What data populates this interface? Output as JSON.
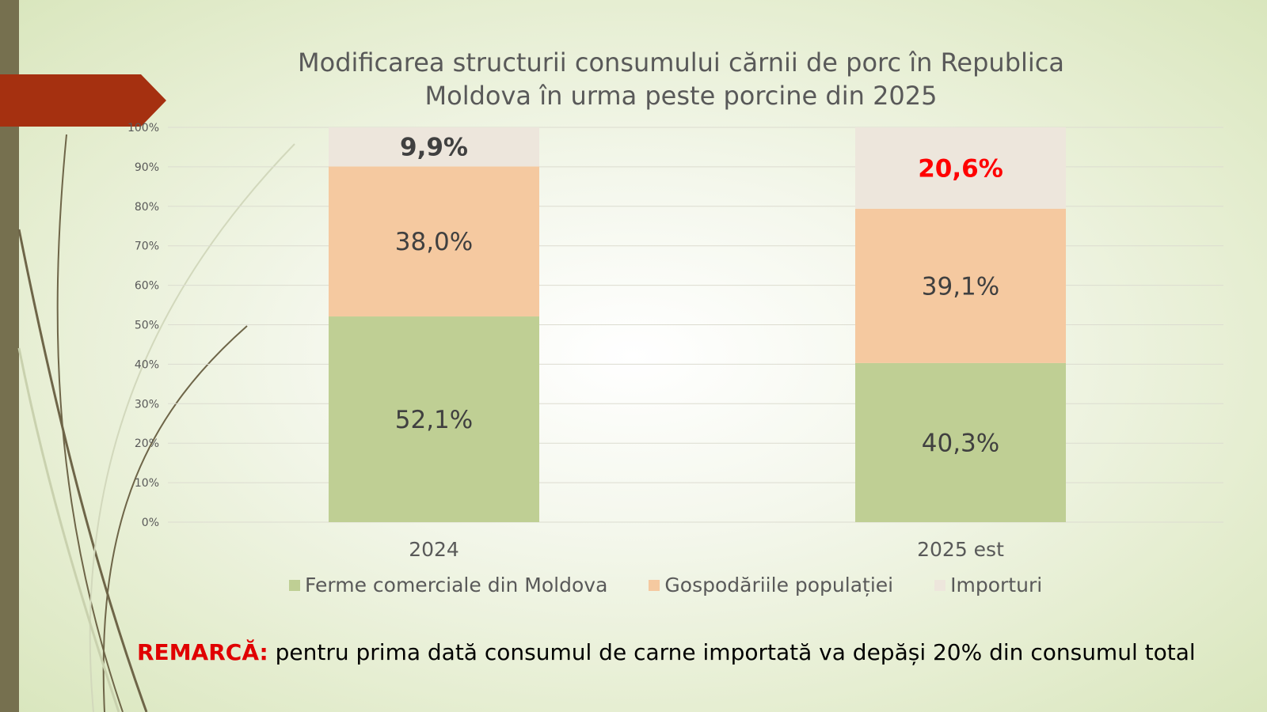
{
  "slide": {
    "title_line1": "Modificarea structurii consumului cărnii de porc în Republica",
    "title_line2": "Moldova în urma peste porcine din 2025",
    "remark_label": "REMARCĂ:",
    "remark_text": " pentru prima dată consumul de carne importată va depăși 20% din consumul total"
  },
  "colors": {
    "accent_arrow": "#a53010",
    "remark_label": "#e00000",
    "highlight_label": "#ff0000"
  },
  "chart_data": {
    "type": "bar",
    "stacked": true,
    "title": "Modificarea structurii consumului cărnii de porc în Republica Moldova în urma peste porcine din 2025",
    "categories": [
      "2024",
      "2025 est"
    ],
    "series": [
      {
        "name": "Ferme comerciale din Moldova",
        "color": "#bfcf94",
        "values": [
          52.1,
          40.3
        ],
        "labels": [
          "52,1%",
          "40,3%"
        ]
      },
      {
        "name": "Gospodăriile populației",
        "color": "#f5c9a0",
        "values": [
          38.0,
          39.1
        ],
        "labels": [
          "38,0%",
          "39,1%"
        ]
      },
      {
        "name": "Importuri",
        "color": "#ede6dc",
        "values": [
          9.9,
          20.6
        ],
        "labels": [
          "9,9%",
          "20,6%"
        ]
      }
    ],
    "y_ticks": [
      "0%",
      "10%",
      "20%",
      "30%",
      "40%",
      "50%",
      "60%",
      "70%",
      "80%",
      "90%",
      "100%"
    ],
    "ylim": [
      0,
      100
    ],
    "grid": true,
    "legend_position": "bottom"
  }
}
